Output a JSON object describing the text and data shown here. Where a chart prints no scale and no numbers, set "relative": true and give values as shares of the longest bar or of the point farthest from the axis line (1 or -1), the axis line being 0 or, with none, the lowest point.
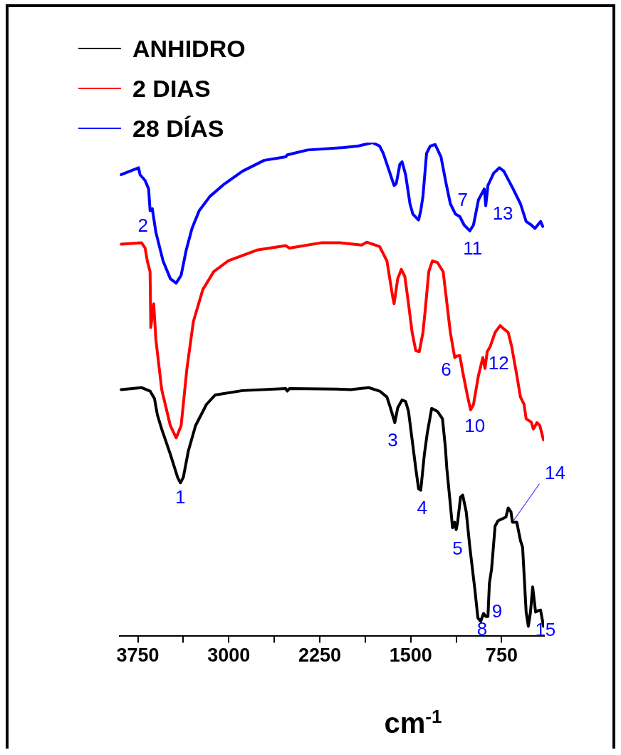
{
  "chart_data": {
    "type": "line",
    "relative": true,
    "xlabel": "cm$^{-1}$",
    "xlim": [
      3900,
      400
    ],
    "xticks": [
      3750,
      {
        "value": 3375,
        "label": null
      },
      3000,
      {
        "value": 2625,
        "label": null
      },
      2250,
      {
        "value": 1875,
        "label": null
      },
      1500,
      {
        "value": 1125,
        "label": null
      },
      750
    ],
    "legend": "top left",
    "grid": false,
    "marker": "none",
    "line_style": "solid",
    "tick_labels": "x",
    "series": [
      {
        "name": "ANHIDRO",
        "color": "#000000",
        "x": [
          3887,
          3720,
          3649,
          3613,
          3589,
          3553,
          3482,
          3422,
          3399,
          3375,
          3333,
          3274,
          3184,
          3113,
          2887,
          2530,
          2518,
          2500,
          2113,
          1994,
          1845,
          1756,
          1696,
          1667,
          1631,
          1607,
          1571,
          1542,
          1518,
          1488,
          1458,
          1435,
          1417,
          1399,
          1387,
          1363,
          1327,
          1280,
          1238,
          1214,
          1202,
          1173,
          1155,
          1137,
          1125,
          1113,
          1089,
          1071,
          1042,
          1012,
          970,
          946,
          923,
          899,
          881,
          863,
          851,
          833,
          804,
          780,
          744,
          714,
          696,
          673,
          661,
          625,
          595,
          577,
          548,
          530,
          512,
          494,
          470,
          446,
          429,
          405
        ],
        "values": [
          0.499,
          0.503,
          0.496,
          0.481,
          0.448,
          0.419,
          0.368,
          0.321,
          0.31,
          0.321,
          0.375,
          0.426,
          0.469,
          0.488,
          0.497,
          0.501,
          0.496,
          0.501,
          0.5,
          0.499,
          0.503,
          0.496,
          0.484,
          0.462,
          0.432,
          0.462,
          0.478,
          0.475,
          0.455,
          0.397,
          0.339,
          0.298,
          0.295,
          0.339,
          0.368,
          0.411,
          0.461,
          0.455,
          0.44,
          0.382,
          0.339,
          0.266,
          0.219,
          0.23,
          0.215,
          0.23,
          0.281,
          0.285,
          0.251,
          0.179,
          0.092,
          0.036,
          0.029,
          0.045,
          0.039,
          0.039,
          0.106,
          0.135,
          0.222,
          0.233,
          0.237,
          0.241,
          0.259,
          0.251,
          0.23,
          0.23,
          0.193,
          0.179,
          0.048,
          0.019,
          0.048,
          0.099,
          0.048,
          0.051,
          0.052,
          0.019
        ]
      },
      {
        "name": "2 DIAS",
        "color": "#ff0000",
        "x": [
          3887,
          3720,
          3690,
          3672,
          3649,
          3643,
          3619,
          3601,
          3553,
          3482,
          3434,
          3393,
          3345,
          3292,
          3214,
          3125,
          3006,
          2768,
          2530,
          2500,
          2232,
          2083,
          1905,
          1863,
          1756,
          1696,
          1649,
          1637,
          1607,
          1577,
          1548,
          1518,
          1488,
          1458,
          1429,
          1399,
          1381,
          1351,
          1321,
          1280,
          1232,
          1208,
          1173,
          1137,
          1119,
          1095,
          1071,
          1030,
          1006,
          982,
          941,
          905,
          887,
          869,
          845,
          804,
          762,
          732,
          696,
          667,
          625,
          595,
          565,
          548,
          506,
          488,
          458,
          435,
          405
        ],
        "values": [
          0.794,
          0.797,
          0.786,
          0.76,
          0.738,
          0.625,
          0.673,
          0.6,
          0.499,
          0.426,
          0.401,
          0.426,
          0.542,
          0.637,
          0.702,
          0.738,
          0.76,
          0.782,
          0.791,
          0.786,
          0.797,
          0.797,
          0.792,
          0.798,
          0.789,
          0.76,
          0.688,
          0.673,
          0.724,
          0.743,
          0.728,
          0.673,
          0.615,
          0.578,
          0.576,
          0.615,
          0.658,
          0.738,
          0.76,
          0.757,
          0.738,
          0.688,
          0.615,
          0.564,
          0.567,
          0.568,
          0.535,
          0.484,
          0.458,
          0.469,
          0.528,
          0.564,
          0.542,
          0.576,
          0.586,
          0.615,
          0.629,
          0.622,
          0.615,
          0.586,
          0.528,
          0.484,
          0.469,
          0.44,
          0.433,
          0.419,
          0.432,
          0.426,
          0.397
        ]
      },
      {
        "name": "28 DÍAS",
        "color": "#0000ff",
        "x": [
          3887,
          3744,
          3732,
          3690,
          3661,
          3649,
          3631,
          3601,
          3542,
          3482,
          3434,
          3393,
          3351,
          3303,
          3244,
          3155,
          3036,
          2887,
          2708,
          2530,
          2518,
          2351,
          2054,
          1934,
          1815,
          1756,
          1726,
          1667,
          1637,
          1619,
          1589,
          1571,
          1542,
          1506,
          1482,
          1435,
          1417,
          1399,
          1369,
          1339,
          1298,
          1250,
          1208,
          1173,
          1131,
          1095,
          1060,
          1012,
          982,
          941,
          893,
          881,
          863,
          816,
          768,
          732,
          685,
          655,
          595,
          548,
          506,
          476,
          452,
          429,
          411
        ],
        "values": [
          0.935,
          0.949,
          0.935,
          0.923,
          0.906,
          0.862,
          0.866,
          0.818,
          0.76,
          0.724,
          0.715,
          0.731,
          0.782,
          0.826,
          0.862,
          0.891,
          0.916,
          0.942,
          0.964,
          0.971,
          0.975,
          0.985,
          0.99,
          0.993,
          1.0,
          0.993,
          0.978,
          0.935,
          0.913,
          0.917,
          0.956,
          0.961,
          0.935,
          0.876,
          0.855,
          0.843,
          0.862,
          0.891,
          0.978,
          0.993,
          0.996,
          0.971,
          0.917,
          0.876,
          0.855,
          0.85,
          0.833,
          0.821,
          0.833,
          0.884,
          0.906,
          0.872,
          0.913,
          0.938,
          0.949,
          0.942,
          0.92,
          0.906,
          0.876,
          0.84,
          0.833,
          0.826,
          0.833,
          0.84,
          0.83
        ]
      }
    ],
    "annotations": [
      {
        "text": "1",
        "x": 3399,
        "y": 0.31
      },
      {
        "text": "2",
        "x": 3649,
        "y": 0.862
      },
      {
        "text": "3",
        "x": 1631,
        "y": 0.432
      },
      {
        "text": "4",
        "x": 1417,
        "y": 0.295
      },
      {
        "text": "5",
        "x": 1125,
        "y": 0.215
      },
      {
        "text": "6",
        "x": 1137,
        "y": 0.564
      },
      {
        "text": "7",
        "x": 1095,
        "y": 0.85
      },
      {
        "text": "8",
        "x": 923,
        "y": 0.029
      },
      {
        "text": "9",
        "x": 881,
        "y": 0.039
      },
      {
        "text": "10",
        "x": 1006,
        "y": 0.458
      },
      {
        "text": "11",
        "x": 1012,
        "y": 0.821
      },
      {
        "text": "12",
        "x": 869,
        "y": 0.576
      },
      {
        "text": "13",
        "x": 881,
        "y": 0.872
      },
      {
        "text": "14",
        "x": 661,
        "y": 0.23
      },
      {
        "text": "15",
        "x": 530,
        "y": 0.019
      }
    ]
  }
}
